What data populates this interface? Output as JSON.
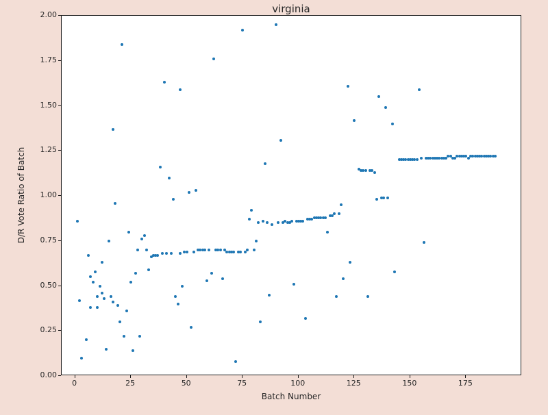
{
  "figure": {
    "background": "#f3ded6",
    "plot_background": "#ffffff"
  },
  "chart_data": {
    "type": "scatter",
    "title": "virginia",
    "xlabel": "Batch Number",
    "ylabel": "D/R Vote Ratio of Batch",
    "xlim": [
      -6,
      200
    ],
    "ylim": [
      0,
      2.0
    ],
    "grid": false,
    "legend": "none",
    "marker_color": "#1f77b4",
    "x_ticks": [
      0,
      25,
      50,
      75,
      100,
      125,
      150,
      175
    ],
    "x_tick_labels": [
      "0",
      "25",
      "50",
      "75",
      "100",
      "125",
      "150",
      "175"
    ],
    "y_ticks": [
      0,
      0.25,
      0.5,
      0.75,
      1.0,
      1.25,
      1.5,
      1.75,
      2.0
    ],
    "y_tick_labels": [
      "0.00",
      "0.25",
      "0.50",
      "0.75",
      "1.00",
      "1.25",
      "1.50",
      "1.75",
      "2.00"
    ],
    "points": [
      [
        1,
        0.86
      ],
      [
        2,
        0.42
      ],
      [
        3,
        0.1
      ],
      [
        5,
        0.2
      ],
      [
        6,
        0.67
      ],
      [
        7,
        0.38
      ],
      [
        7,
        0.55
      ],
      [
        8,
        0.52
      ],
      [
        9,
        0.58
      ],
      [
        10,
        0.38
      ],
      [
        10,
        0.44
      ],
      [
        11,
        0.5
      ],
      [
        12,
        0.46
      ],
      [
        12,
        0.63
      ],
      [
        13,
        0.43
      ],
      [
        14,
        0.15
      ],
      [
        15,
        0.75
      ],
      [
        16,
        0.44
      ],
      [
        17,
        1.37
      ],
      [
        17,
        0.41
      ],
      [
        18,
        0.96
      ],
      [
        19,
        0.39
      ],
      [
        20,
        0.3
      ],
      [
        21,
        1.84
      ],
      [
        22,
        0.22
      ],
      [
        23,
        0.36
      ],
      [
        24,
        0.8
      ],
      [
        25,
        0.52
      ],
      [
        26,
        0.14
      ],
      [
        27,
        0.57
      ],
      [
        28,
        0.7
      ],
      [
        29,
        0.22
      ],
      [
        30,
        0.76
      ],
      [
        31,
        0.78
      ],
      [
        32,
        0.7
      ],
      [
        33,
        0.59
      ],
      [
        34,
        0.66
      ],
      [
        35,
        0.67
      ],
      [
        36,
        0.67
      ],
      [
        37,
        0.67
      ],
      [
        38,
        1.16
      ],
      [
        39,
        0.68
      ],
      [
        40,
        1.63
      ],
      [
        41,
        0.68
      ],
      [
        42,
        1.1
      ],
      [
        43,
        0.68
      ],
      [
        44,
        0.98
      ],
      [
        45,
        0.44
      ],
      [
        46,
        0.4
      ],
      [
        47,
        0.68
      ],
      [
        47,
        1.59
      ],
      [
        48,
        0.5
      ],
      [
        49,
        0.69
      ],
      [
        50,
        0.69
      ],
      [
        51,
        1.02
      ],
      [
        52,
        0.27
      ],
      [
        53,
        0.69
      ],
      [
        54,
        1.03
      ],
      [
        55,
        0.7
      ],
      [
        56,
        0.7
      ],
      [
        57,
        0.7
      ],
      [
        58,
        0.7
      ],
      [
        59,
        0.53
      ],
      [
        60,
        0.7
      ],
      [
        61,
        0.57
      ],
      [
        62,
        1.76
      ],
      [
        63,
        0.7
      ],
      [
        64,
        0.7
      ],
      [
        65,
        0.7
      ],
      [
        66,
        0.54
      ],
      [
        67,
        0.7
      ],
      [
        68,
        0.69
      ],
      [
        69,
        0.69
      ],
      [
        70,
        0.69
      ],
      [
        71,
        0.69
      ],
      [
        72,
        0.08
      ],
      [
        73,
        0.69
      ],
      [
        74,
        0.69
      ],
      [
        75,
        1.92
      ],
      [
        76,
        0.69
      ],
      [
        77,
        0.7
      ],
      [
        78,
        0.87
      ],
      [
        79,
        0.92
      ],
      [
        80,
        0.7
      ],
      [
        81,
        0.75
      ],
      [
        82,
        0.85
      ],
      [
        83,
        0.3
      ],
      [
        84,
        0.86
      ],
      [
        85,
        1.18
      ],
      [
        86,
        0.85
      ],
      [
        87,
        0.45
      ],
      [
        88,
        0.84
      ],
      [
        90,
        1.95
      ],
      [
        91,
        0.85
      ],
      [
        92,
        1.31
      ],
      [
        93,
        0.85
      ],
      [
        94,
        0.86
      ],
      [
        95,
        0.85
      ],
      [
        96,
        0.85
      ],
      [
        97,
        0.86
      ],
      [
        98,
        0.51
      ],
      [
        99,
        0.86
      ],
      [
        100,
        0.86
      ],
      [
        101,
        0.86
      ],
      [
        102,
        0.86
      ],
      [
        103,
        0.32
      ],
      [
        104,
        0.87
      ],
      [
        105,
        0.87
      ],
      [
        106,
        0.87
      ],
      [
        107,
        0.88
      ],
      [
        108,
        0.88
      ],
      [
        109,
        0.88
      ],
      [
        110,
        0.88
      ],
      [
        111,
        0.88
      ],
      [
        112,
        0.88
      ],
      [
        113,
        0.8
      ],
      [
        114,
        0.89
      ],
      [
        115,
        0.89
      ],
      [
        116,
        0.9
      ],
      [
        117,
        0.44
      ],
      [
        118,
        0.9
      ],
      [
        119,
        0.95
      ],
      [
        120,
        0.54
      ],
      [
        122,
        1.61
      ],
      [
        123,
        0.63
      ],
      [
        125,
        1.42
      ],
      [
        127,
        1.15
      ],
      [
        128,
        1.14
      ],
      [
        129,
        1.14
      ],
      [
        130,
        1.14
      ],
      [
        131,
        0.44
      ],
      [
        132,
        1.14
      ],
      [
        133,
        1.14
      ],
      [
        134,
        1.13
      ],
      [
        135,
        0.98
      ],
      [
        136,
        1.55
      ],
      [
        137,
        0.99
      ],
      [
        138,
        0.99
      ],
      [
        139,
        1.49
      ],
      [
        140,
        0.99
      ],
      [
        142,
        1.4
      ],
      [
        143,
        0.58
      ],
      [
        145,
        1.2
      ],
      [
        146,
        1.2
      ],
      [
        147,
        1.2
      ],
      [
        148,
        1.2
      ],
      [
        149,
        1.2
      ],
      [
        150,
        1.2
      ],
      [
        151,
        1.2
      ],
      [
        152,
        1.2
      ],
      [
        153,
        1.2
      ],
      [
        154,
        1.59
      ],
      [
        155,
        1.21
      ],
      [
        156,
        0.74
      ],
      [
        157,
        1.21
      ],
      [
        158,
        1.21
      ],
      [
        159,
        1.21
      ],
      [
        160,
        1.21
      ],
      [
        161,
        1.21
      ],
      [
        162,
        1.21
      ],
      [
        163,
        1.21
      ],
      [
        164,
        1.21
      ],
      [
        165,
        1.21
      ],
      [
        166,
        1.21
      ],
      [
        167,
        1.22
      ],
      [
        168,
        1.22
      ],
      [
        169,
        1.21
      ],
      [
        170,
        1.21
      ],
      [
        171,
        1.22
      ],
      [
        172,
        1.22
      ],
      [
        173,
        1.22
      ],
      [
        174,
        1.22
      ],
      [
        175,
        1.22
      ],
      [
        176,
        1.21
      ],
      [
        177,
        1.22
      ],
      [
        178,
        1.22
      ],
      [
        179,
        1.22
      ],
      [
        180,
        1.22
      ],
      [
        181,
        1.22
      ],
      [
        182,
        1.22
      ],
      [
        183,
        1.22
      ],
      [
        184,
        1.22
      ],
      [
        185,
        1.22
      ],
      [
        186,
        1.22
      ],
      [
        187,
        1.22
      ],
      [
        188,
        1.22
      ]
    ]
  }
}
